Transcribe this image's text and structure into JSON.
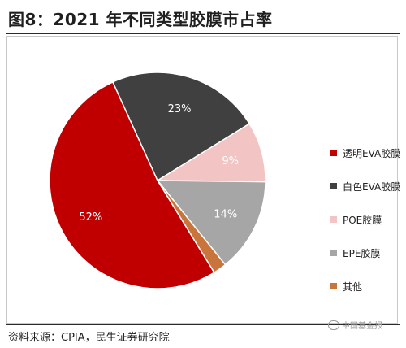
{
  "title": "图8：2021 年不同类型胶膜市占率",
  "source": "资料来源：CPIA，民生证券研究院",
  "watermark": "中国基金报",
  "chart_data": {
    "type": "pie",
    "title": "图8：2021 年不同类型胶膜市占率",
    "categories": [
      "透明EVA胶膜",
      "白色EVA胶膜",
      "POE胶膜",
      "EPE胶膜",
      "其他"
    ],
    "values": [
      52,
      23,
      9,
      14,
      2
    ],
    "labels": [
      "52%",
      "23%",
      "9%",
      "14%",
      ""
    ],
    "colors": [
      "#C00000",
      "#404040",
      "#F2C4C4",
      "#A6A6A6",
      "#C8743A"
    ],
    "legend_position": "right"
  }
}
